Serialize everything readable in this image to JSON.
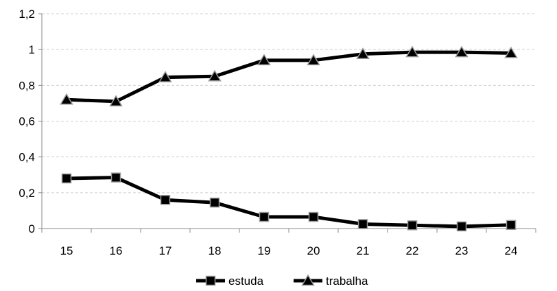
{
  "chart_data": {
    "type": "line",
    "title": "",
    "xlabel": "",
    "ylabel": "",
    "categories": [
      "15",
      "16",
      "17",
      "18",
      "19",
      "20",
      "21",
      "22",
      "23",
      "24"
    ],
    "ylim": [
      0,
      1.2
    ],
    "y_ticks": [
      "0",
      "0,2",
      "0,4",
      "0,6",
      "0,8",
      "1",
      "1,2"
    ],
    "grid": true,
    "legend_position": "bottom",
    "series": [
      {
        "name": "estuda",
        "marker": "square",
        "color": "#000000",
        "values": [
          0.28,
          0.285,
          0.16,
          0.145,
          0.065,
          0.065,
          0.025,
          0.018,
          0.012,
          0.02
        ]
      },
      {
        "name": "trabalha",
        "marker": "triangle",
        "color": "#000000",
        "values": [
          0.72,
          0.71,
          0.845,
          0.85,
          0.94,
          0.94,
          0.975,
          0.985,
          0.985,
          0.98
        ]
      }
    ]
  }
}
